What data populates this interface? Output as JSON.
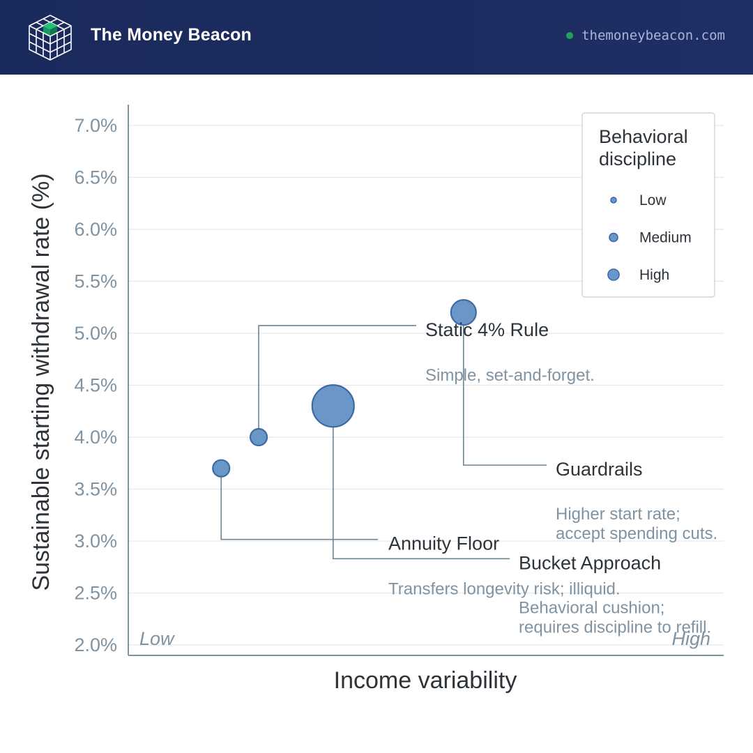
{
  "header": {
    "brand": "The Money Beacon",
    "site_url": "themoneybeacon.com"
  },
  "colors": {
    "header_bg": "#1b2a5c",
    "bubble_fill": "#6b97c8",
    "bubble_stroke": "#3c6aa3",
    "site_dot": "#1fa35a",
    "tick_text": "#7f93a3",
    "leader": "#6c8392"
  },
  "chart_data": {
    "type": "scatter",
    "xlabel": "Income variability",
    "ylabel": "Sustainable starting withdrawal rate (%)",
    "x_end_labels": {
      "low": "Low",
      "high": "High"
    },
    "xlim": [
      0,
      1
    ],
    "ylim": [
      1.9,
      7.2
    ],
    "yticks": [
      {
        "value": 2.0,
        "label": "2.0%"
      },
      {
        "value": 2.5,
        "label": "2.5%"
      },
      {
        "value": 3.0,
        "label": "3.0%"
      },
      {
        "value": 3.5,
        "label": "3.5%"
      },
      {
        "value": 4.0,
        "label": "4.0%"
      },
      {
        "value": 4.5,
        "label": "4.5%"
      },
      {
        "value": 5.0,
        "label": "5.0%"
      },
      {
        "value": 5.5,
        "label": "5.5%"
      },
      {
        "value": 6.0,
        "label": "6.0%"
      },
      {
        "value": 6.5,
        "label": "6.5%"
      },
      {
        "value": 7.0,
        "label": "7.0%"
      }
    ],
    "grid": true,
    "legend": {
      "title": "Behavioral discipline",
      "title_lines": [
        "Behavioral",
        "discipline"
      ],
      "placement": "top-right",
      "entries": [
        {
          "label": "Low",
          "size": "low"
        },
        {
          "label": "Medium",
          "size": "medium"
        },
        {
          "label": "High",
          "size": "high"
        }
      ]
    },
    "points": [
      {
        "name": "Annuity Floor",
        "x": 0.156,
        "y": 3.7,
        "size": "medium",
        "label": "Annuity Floor",
        "note_lines": [
          "Transfers longevity risk; illiquid."
        ]
      },
      {
        "name": "Static 4% Rule",
        "x": 0.219,
        "y": 4.0,
        "size": "medium",
        "label": "Static 4% Rule",
        "note_lines": [
          "Simple, set-and-forget."
        ]
      },
      {
        "name": "Bucket Approach",
        "x": 0.344,
        "y": 4.3,
        "size": "large",
        "label": "Bucket Approach",
        "note_lines": [
          "Behavioral cushion;",
          "requires discipline to refill."
        ]
      },
      {
        "name": "Guardrails",
        "x": 0.563,
        "y": 5.2,
        "size": "high",
        "label": "Guardrails",
        "note_lines": [
          "Higher start rate;",
          "accept spending cuts."
        ]
      }
    ]
  }
}
